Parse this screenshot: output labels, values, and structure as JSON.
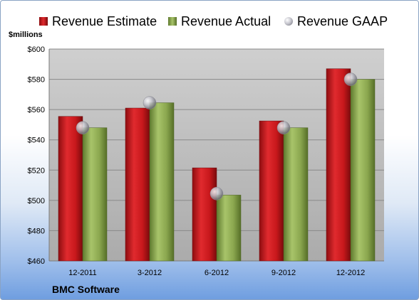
{
  "chart_data": {
    "type": "bar",
    "ylabel": "$millions",
    "ylim": [
      460,
      600
    ],
    "yticks": [
      "$460",
      "$480",
      "$500",
      "$520",
      "$540",
      "$560",
      "$580",
      "$600"
    ],
    "categories": [
      "12-2011",
      "3-2012",
      "6-2012",
      "9-2012",
      "12-2012"
    ],
    "series": [
      {
        "name": "Revenue Estimate",
        "kind": "bar",
        "color": "#c8181c",
        "values": [
          555.5,
          561,
          521.5,
          552.5,
          587
        ]
      },
      {
        "name": "Revenue Actual",
        "kind": "bar",
        "color": "#8aa64e",
        "values": [
          548,
          564.5,
          503.5,
          548,
          580
        ]
      },
      {
        "name": "Revenue GAAP",
        "kind": "marker",
        "color": "#b8b8c0",
        "values": [
          548,
          564.5,
          504.5,
          548,
          580
        ]
      }
    ],
    "grid": true,
    "legend": "top"
  },
  "footer": {
    "company": "BMC Software"
  }
}
